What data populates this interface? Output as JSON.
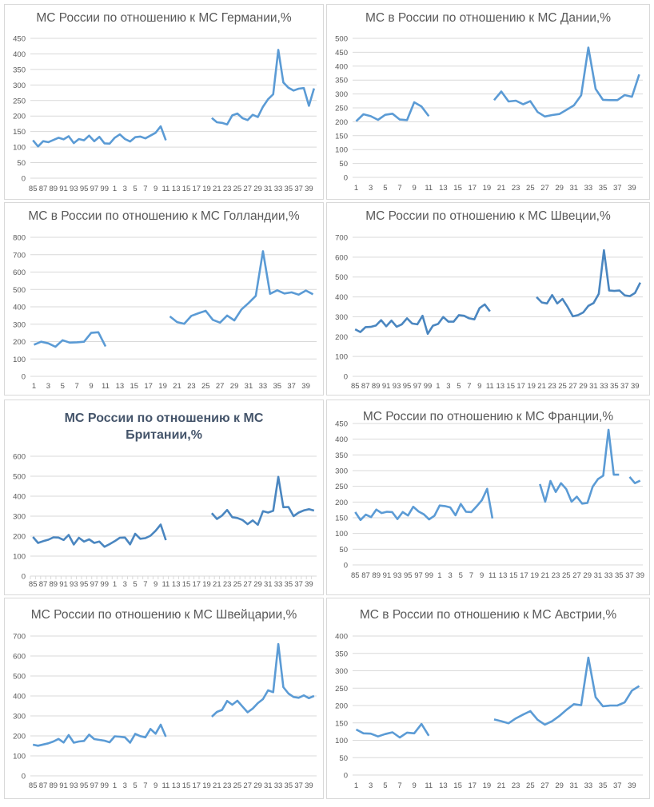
{
  "chart_data": [
    {
      "type": "line",
      "title": "МС России по отношению к МС Германии,%",
      "ylim": [
        0,
        450
      ],
      "ystep": 50,
      "x_scheme": "85-40",
      "values": [
        122,
        102,
        119,
        116,
        123,
        130,
        125,
        135,
        113,
        126,
        122,
        137,
        119,
        133,
        112,
        111,
        130,
        141,
        126,
        118,
        132,
        134,
        128,
        137,
        146,
        167,
        122,
        null,
        null,
        null,
        null,
        null,
        null,
        null,
        null,
        194,
        180,
        178,
        173,
        202,
        208,
        193,
        187,
        204,
        197,
        230,
        254,
        270,
        413,
        308,
        291,
        282,
        288,
        290,
        233,
        289
      ],
      "color": "#5b9bd5",
      "grid": true
    },
    {
      "type": "line",
      "title": "МС в России по отношению к МС Дании,%",
      "ylim": [
        0,
        500
      ],
      "ystep": 50,
      "x_scheme": "1-40",
      "values": [
        202,
        227,
        220,
        207,
        225,
        229,
        208,
        206,
        270,
        255,
        220,
        null,
        null,
        null,
        null,
        null,
        null,
        null,
        null,
        278,
        309,
        273,
        276,
        263,
        274,
        235,
        219,
        224,
        228,
        243,
        259,
        295,
        467,
        318,
        279,
        278,
        278,
        296,
        290,
        370
      ],
      "color": "#5b9bd5",
      "grid": true
    },
    {
      "type": "line",
      "title": "МС в России по отношению к МС Голландии,%",
      "ylim": [
        0,
        800
      ],
      "ystep": 100,
      "x_scheme": "1-40",
      "values": [
        182,
        199,
        190,
        170,
        208,
        194,
        196,
        199,
        250,
        254,
        172,
        null,
        null,
        null,
        null,
        null,
        null,
        null,
        null,
        345,
        312,
        302,
        348,
        363,
        377,
        325,
        309,
        350,
        322,
        385,
        422,
        463,
        720,
        475,
        495,
        477,
        483,
        470,
        494,
        472
      ],
      "color": "#5b9bd5",
      "grid": true
    },
    {
      "type": "line",
      "title": "МС России по отношению к МС Швеции,%",
      "ylim": [
        0,
        700
      ],
      "ystep": 100,
      "x_scheme": "85-40",
      "values": [
        237,
        223,
        248,
        249,
        256,
        283,
        252,
        281,
        250,
        262,
        292,
        266,
        262,
        305,
        214,
        255,
        264,
        299,
        275,
        275,
        308,
        305,
        292,
        287,
        343,
        362,
        327,
        null,
        null,
        null,
        null,
        null,
        null,
        null,
        null,
        399,
        372,
        367,
        409,
        367,
        390,
        349,
        302,
        308,
        322,
        355,
        369,
        415,
        635,
        432,
        430,
        432,
        408,
        404,
        420,
        472
      ],
      "color": "#4a86c0",
      "grid": true
    },
    {
      "type": "line",
      "title": "МС России по отношению к МС Британии,%",
      "ylim": [
        0,
        600
      ],
      "ystep": 100,
      "x_scheme": "85-40",
      "values": [
        196,
        166,
        175,
        182,
        194,
        193,
        181,
        206,
        158,
        192,
        173,
        184,
        166,
        173,
        147,
        160,
        175,
        192,
        193,
        159,
        212,
        187,
        190,
        202,
        227,
        258,
        180,
        null,
        null,
        null,
        null,
        null,
        null,
        null,
        null,
        315,
        286,
        303,
        331,
        295,
        291,
        281,
        260,
        279,
        257,
        325,
        318,
        327,
        497,
        345,
        346,
        300,
        318,
        329,
        335,
        328
      ],
      "color": "#4a86c0",
      "grid": true
    },
    {
      "type": "line",
      "title": "МС России по отношению к МС Франции,%",
      "ylim": [
        0,
        450
      ],
      "ystep": 50,
      "x_scheme": "85-39",
      "values": [
        168,
        143,
        160,
        152,
        176,
        165,
        169,
        168,
        146,
        168,
        157,
        185,
        170,
        161,
        145,
        156,
        189,
        187,
        183,
        158,
        194,
        169,
        168,
        186,
        206,
        242,
        148,
        null,
        null,
        null,
        null,
        null,
        null,
        null,
        null,
        257,
        201,
        267,
        232,
        260,
        241,
        201,
        217,
        195,
        197,
        249,
        273,
        284,
        430,
        287,
        287,
        null,
        280,
        260,
        268
      ],
      "color": "#5b9bd5",
      "grid": true
    },
    {
      "type": "line",
      "title": "МС России по отношению к МС Швейцарии,%",
      "ylim": [
        0,
        700
      ],
      "ystep": 100,
      "x_scheme": "85-40",
      "values": [
        156,
        151,
        157,
        163,
        172,
        185,
        167,
        204,
        166,
        172,
        175,
        206,
        184,
        180,
        176,
        168,
        198,
        196,
        193,
        166,
        210,
        199,
        193,
        235,
        211,
        256,
        196,
        null,
        null,
        null,
        null,
        null,
        null,
        null,
        null,
        296,
        320,
        330,
        375,
        356,
        376,
        347,
        318,
        337,
        364,
        384,
        428,
        419,
        660,
        444,
        412,
        395,
        391,
        403,
        389,
        400
      ],
      "color": "#5b9bd5",
      "grid": true
    },
    {
      "type": "line",
      "title": "МС в России по отношению к МС Австрии,%",
      "ylim": [
        0,
        400
      ],
      "ystep": 50,
      "x_scheme": "1-40",
      "values": [
        131,
        120,
        119,
        111,
        118,
        123,
        108,
        122,
        120,
        147,
        113,
        null,
        null,
        null,
        null,
        null,
        null,
        null,
        null,
        160,
        155,
        149,
        163,
        174,
        184,
        159,
        145,
        155,
        170,
        188,
        204,
        201,
        338,
        224,
        198,
        200,
        200,
        209,
        243,
        256
      ],
      "color": "#5b9bd5",
      "grid": true
    }
  ]
}
